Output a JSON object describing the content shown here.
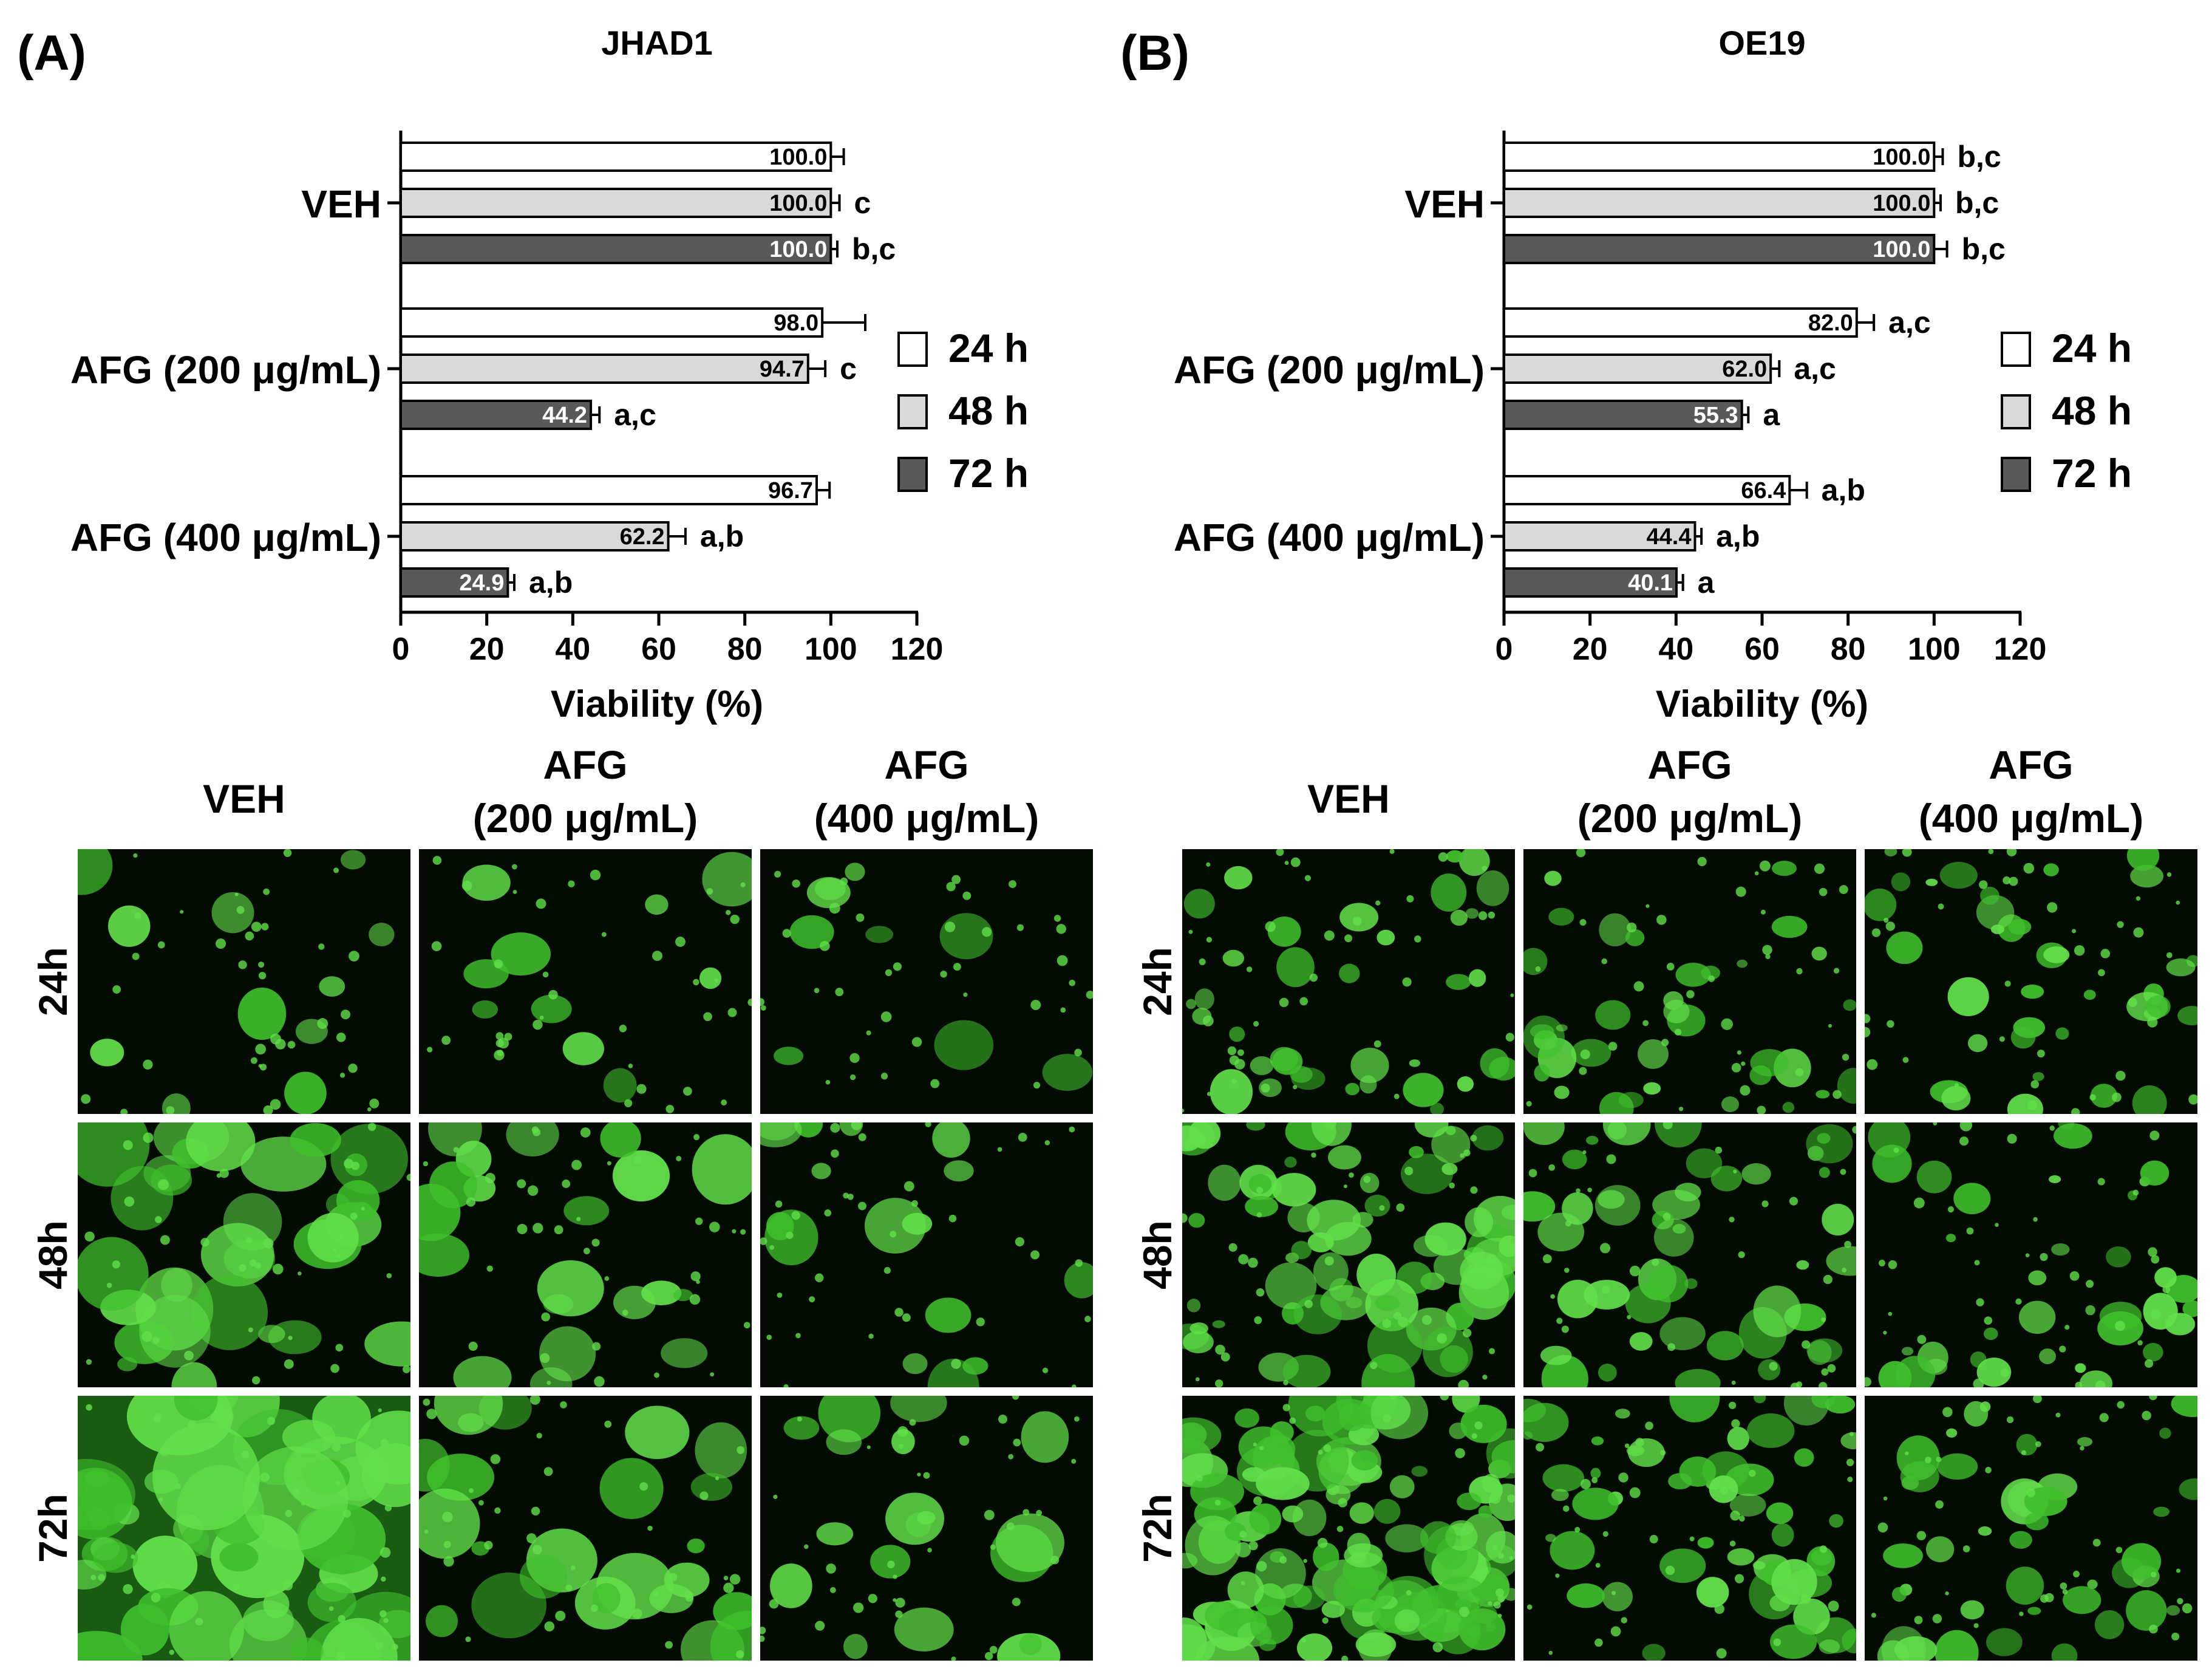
{
  "figure": {
    "colors": {
      "h24": "#ffffff",
      "h48": "#d9d9d9",
      "h72": "#595959",
      "micro_bg": "#040b03",
      "micro_cell": "#3fbf2c",
      "micro_cell_bright": "#62e04a"
    },
    "micro": {
      "column_headers": [
        [
          "VEH"
        ],
        [
          "AFG",
          "(200 μg/mL)"
        ],
        [
          "AFG",
          "(400 μg/mL)"
        ]
      ],
      "row_labels": [
        "24h",
        "48h",
        "72h"
      ]
    }
  },
  "chart_data": [
    {
      "type": "bar",
      "orientation": "horizontal",
      "panel_label": "(A)",
      "title": "JHAD1",
      "xlabel": "Viability (%)",
      "xlim": [
        0,
        120
      ],
      "xticks": [
        "0",
        "20",
        "40",
        "60",
        "80",
        "100",
        "120"
      ],
      "categories": [
        "VEH",
        "AFG (200 μg/mL)",
        "AFG (400 μg/mL)"
      ],
      "legend": [
        "24 h",
        "48 h",
        "72 h"
      ],
      "series": [
        {
          "name": "24 h",
          "values": [
            100.0,
            98.0,
            96.7
          ],
          "labels": [
            "100.0",
            "98.0",
            "96.7"
          ],
          "errors": [
            3,
            10,
            3
          ],
          "letters": [
            "",
            "",
            ""
          ]
        },
        {
          "name": "48 h",
          "values": [
            100.0,
            94.7,
            62.2
          ],
          "labels": [
            "100.0",
            "94.7",
            "62.2"
          ],
          "errors": [
            2,
            4,
            4
          ],
          "letters": [
            "c",
            "c",
            "a,b"
          ]
        },
        {
          "name": "72 h",
          "values": [
            100.0,
            44.2,
            24.9
          ],
          "labels": [
            "100.0",
            "44.2",
            "24.9"
          ],
          "errors": [
            1.5,
            2,
            1.5
          ],
          "letters": [
            "b,c",
            "a,c",
            "a,b"
          ]
        }
      ]
    },
    {
      "type": "bar",
      "orientation": "horizontal",
      "panel_label": "(B)",
      "title": "OE19",
      "xlabel": "Viability (%)",
      "xlim": [
        0,
        120
      ],
      "xticks": [
        "0",
        "20",
        "40",
        "60",
        "80",
        "100",
        "120"
      ],
      "categories": [
        "VEH",
        "AFG (200 μg/mL)",
        "AFG (400 μg/mL)"
      ],
      "legend": [
        "24 h",
        "48 h",
        "72 h"
      ],
      "series": [
        {
          "name": "24 h",
          "values": [
            100.0,
            82.0,
            66.4
          ],
          "labels": [
            "100.0",
            "82.0",
            "66.4"
          ],
          "errors": [
            2,
            4,
            4
          ],
          "letters": [
            "b,c",
            "a,c",
            "a,b"
          ]
        },
        {
          "name": "48 h",
          "values": [
            100.0,
            62.0,
            44.4
          ],
          "labels": [
            "100.0",
            "62.0",
            "44.4"
          ],
          "errors": [
            1.5,
            2,
            1.5
          ],
          "letters": [
            "b,c",
            "a,c",
            "a,b"
          ]
        },
        {
          "name": "72 h",
          "values": [
            100.0,
            55.3,
            40.1
          ],
          "labels": [
            "100.0",
            "55.3",
            "40.1"
          ],
          "errors": [
            3,
            1.5,
            1.5
          ],
          "letters": [
            "b,c",
            "a",
            "a"
          ]
        }
      ]
    }
  ]
}
